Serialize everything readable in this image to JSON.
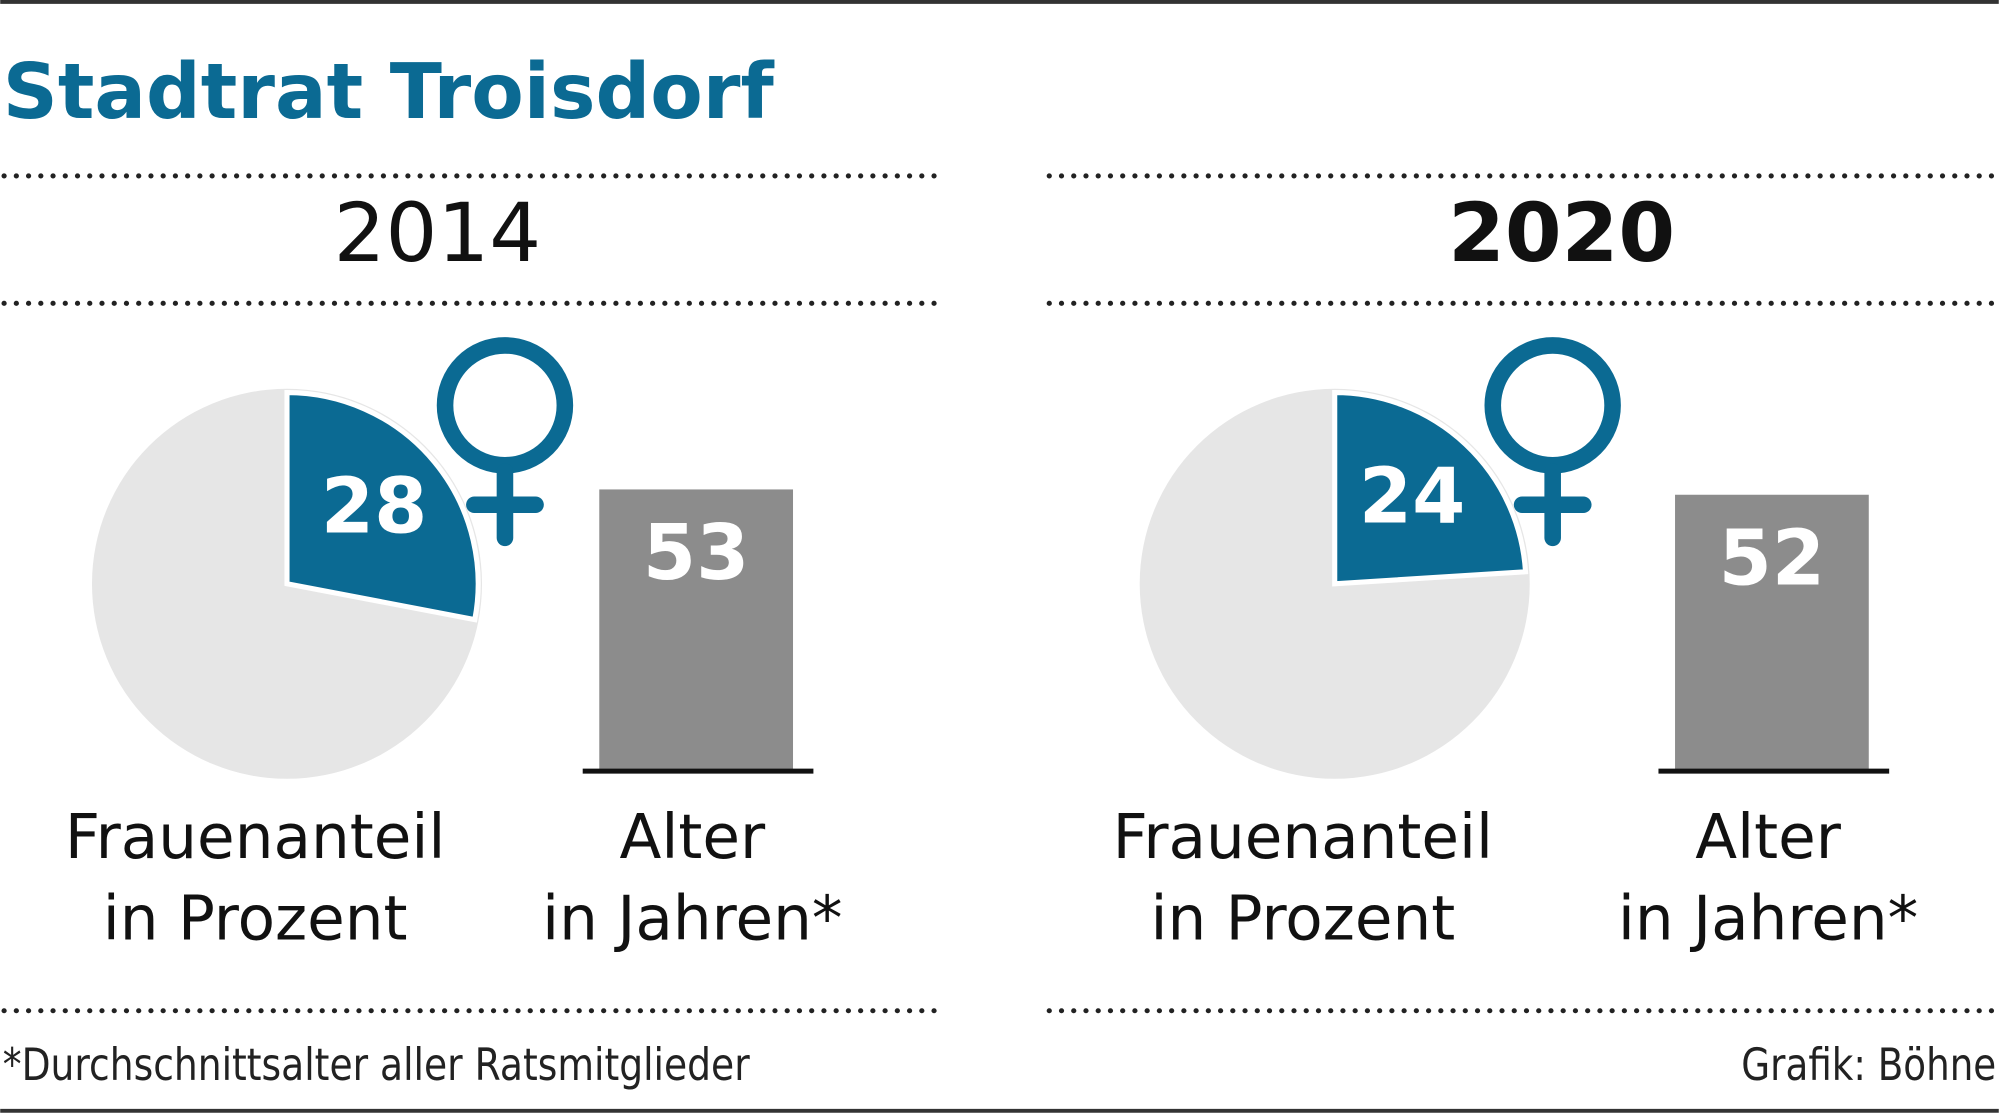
{
  "title": "Stadtrat Troisdorf",
  "footnote": "*Durchschnittsalter aller Ratsmitglieder",
  "credit": "Grafik: Böhne",
  "chart_data": [
    {
      "type": "panel",
      "title": "2014",
      "title_bold": false,
      "pie": {
        "values": [
          28
        ],
        "color": "#0b6a93",
        "rest_color": "#e6e6e6",
        "label": [
          "Frauenanteil",
          "in Prozent"
        ]
      },
      "bar": {
        "values": [
          53
        ],
        "color": "#8c8c8c",
        "label": [
          "Alter",
          "in Jahren*"
        ]
      }
    },
    {
      "type": "panel",
      "title": "2020",
      "title_bold": true,
      "pie": {
        "values": [
          24
        ],
        "color": "#0b6a93",
        "rest_color": "#e6e6e6",
        "label": [
          "Frauenanteil",
          "in Prozent"
        ]
      },
      "bar": {
        "values": [
          52
        ],
        "color": "#8c8c8c",
        "label": [
          "Alter",
          "in Jahren*"
        ]
      }
    }
  ]
}
